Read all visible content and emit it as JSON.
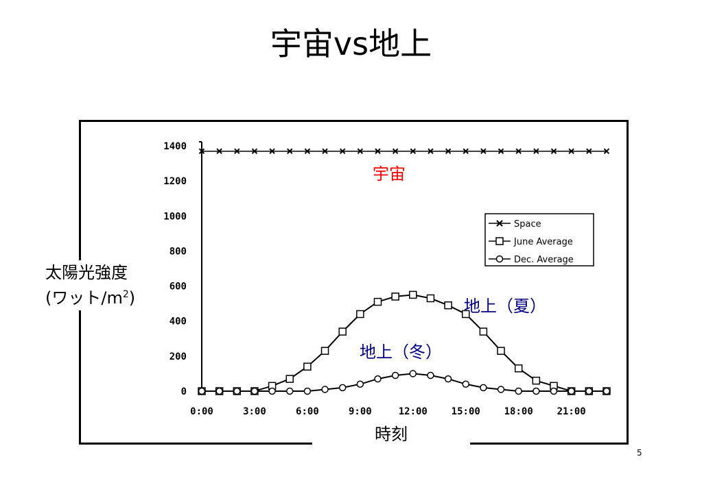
{
  "slide": {
    "title": "宇宙vs地上",
    "page_number": "5"
  },
  "chart_data": {
    "type": "line",
    "ylabel_line1": "太陽光強度",
    "ylabel_line2": "(ワット/m",
    "ylabel_sup": "2",
    "ylabel_close": ")",
    "xlabel": "時刻",
    "ylim": [
      0,
      1400
    ],
    "xlim": [
      0,
      23
    ],
    "yticks": [
      "0",
      "200",
      "400",
      "600",
      "800",
      "1000",
      "1200",
      "1400"
    ],
    "ytick_values": [
      0,
      200,
      400,
      600,
      800,
      1000,
      1200,
      1400
    ],
    "xticks": [
      "0:00",
      "3:00",
      "6:00",
      "9:00",
      "12:00",
      "15:00",
      "18:00",
      "21:00"
    ],
    "xtick_values": [
      0,
      3,
      6,
      9,
      12,
      15,
      18,
      21
    ],
    "grid": false,
    "legend_position": "right",
    "x": [
      0,
      1,
      2,
      3,
      4,
      5,
      6,
      7,
      8,
      9,
      10,
      11,
      12,
      13,
      14,
      15,
      16,
      17,
      18,
      19,
      20,
      21,
      22,
      23
    ],
    "series": [
      {
        "name": "Space",
        "marker": "x",
        "values": [
          1370,
          1370,
          1370,
          1370,
          1370,
          1370,
          1370,
          1370,
          1370,
          1370,
          1370,
          1370,
          1370,
          1370,
          1370,
          1370,
          1370,
          1370,
          1370,
          1370,
          1370,
          1370,
          1370,
          1370
        ]
      },
      {
        "name": "June Average",
        "marker": "square",
        "values": [
          0,
          0,
          0,
          0,
          30,
          70,
          140,
          230,
          340,
          440,
          510,
          540,
          550,
          530,
          490,
          440,
          340,
          230,
          130,
          60,
          30,
          0,
          0,
          0
        ]
      },
      {
        "name": "Dec. Average",
        "marker": "circle",
        "values": [
          0,
          0,
          0,
          0,
          0,
          0,
          0,
          10,
          20,
          40,
          70,
          90,
          100,
          90,
          70,
          40,
          20,
          10,
          0,
          0,
          0,
          0,
          0,
          0
        ]
      }
    ],
    "annotations": {
      "space": "宇宙",
      "summer": "地上（夏）",
      "winter": "地上（冬）"
    },
    "colors": {
      "space_annotation": "#ff0000",
      "ground_annotation": "#000080",
      "lines": "#000000"
    }
  }
}
